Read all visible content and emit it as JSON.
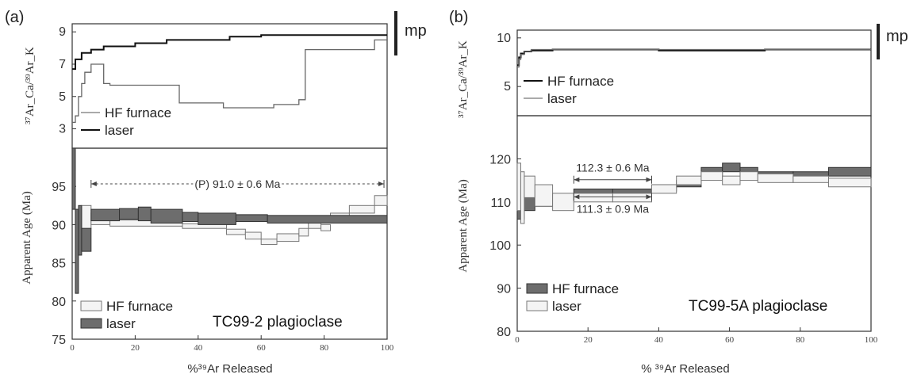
{
  "chart_data": [
    {
      "panel_label": "(a)",
      "type": "line",
      "title": "TC99-2 plagioclase",
      "xlabel": "%³⁹Ar Released",
      "xlim": [
        0,
        100
      ],
      "x_ticks": [
        "0",
        "20",
        "40",
        "60",
        "80",
        "100"
      ],
      "scale_bar_label": "mp",
      "top": {
        "ylabel": "³⁷Ar_Ca/³⁹Ar_K",
        "y_ticks": [
          "3",
          "5",
          "7",
          "9"
        ],
        "ylim": [
          1.8,
          9.5
        ],
        "legend": [
          "HF furnace",
          "laser"
        ],
        "series": [
          {
            "style": "thin",
            "x": [
              0,
              1,
              1,
              2,
              2,
              3,
              3,
              4,
              4,
              6,
              6,
              10,
              10,
              12,
              12,
              34,
              34,
              48,
              48,
              64,
              64,
              72,
              72,
              74,
              74,
              96,
              96,
              100
            ],
            "y": [
              3.4,
              3.4,
              3.8,
              3.8,
              5,
              5,
              5.8,
              5.8,
              6.5,
              6.5,
              7.0,
              7.0,
              5.8,
              5.8,
              5.7,
              5.7,
              4.6,
              4.6,
              4.3,
              4.3,
              4.5,
              4.5,
              4.8,
              4.8,
              7.9,
              7.9,
              8.5,
              8.5
            ]
          },
          {
            "style": "thick",
            "x": [
              0,
              1,
              1,
              3,
              3,
              6,
              6,
              10,
              10,
              20,
              20,
              30,
              30,
              50,
              50,
              60,
              60,
              100
            ],
            "y": [
              6.7,
              6.7,
              7.3,
              7.3,
              7.7,
              7.7,
              7.9,
              7.9,
              8.1,
              8.1,
              8.3,
              8.3,
              8.5,
              8.5,
              8.7,
              8.7,
              8.8,
              8.8
            ]
          }
        ]
      },
      "bottom": {
        "ylabel": "Apparent Age (Ma)",
        "y_ticks": [
          "75",
          "80",
          "85",
          "90",
          "95"
        ],
        "ylim": [
          75,
          100
        ],
        "legend": [
          "HF furnace",
          "laser"
        ],
        "plateau_label": "(P) 91.0 ± 0.6 Ma",
        "plateau_range": [
          6,
          99
        ],
        "boxes_open": [
          [
            0,
            1,
            97,
            101
          ],
          [
            1,
            2,
            90,
            92
          ],
          [
            3,
            6,
            89.5,
            92.5
          ],
          [
            6,
            12,
            90,
            91.5
          ],
          [
            12,
            35,
            89.8,
            90.6
          ],
          [
            35,
            49,
            89.5,
            90.1
          ],
          [
            49,
            55,
            88.7,
            89.4
          ],
          [
            55,
            60,
            88.1,
            89.0
          ],
          [
            60,
            65,
            87.4,
            88.1
          ],
          [
            65,
            72,
            87.8,
            88.8
          ],
          [
            72,
            75,
            88.5,
            89.5
          ],
          [
            75,
            79,
            89.5,
            90.4
          ],
          [
            79,
            82,
            89.2,
            90.0
          ],
          [
            82,
            88,
            90.5,
            91.5
          ],
          [
            88,
            96,
            91.5,
            92.5
          ],
          [
            96,
            100,
            92.5,
            93.8
          ]
        ],
        "boxes_filled": [
          [
            0,
            1,
            92,
            100
          ],
          [
            1,
            2,
            81,
            92
          ],
          [
            2,
            3,
            86,
            92.5
          ],
          [
            3,
            6,
            86.5,
            89.5
          ],
          [
            6,
            15,
            90.5,
            92
          ],
          [
            15,
            21,
            90.7,
            92.1
          ],
          [
            21,
            25,
            90.5,
            92.3
          ],
          [
            25,
            35,
            90.2,
            92
          ],
          [
            35,
            40,
            90.4,
            91.6
          ],
          [
            40,
            52,
            90,
            91.5
          ],
          [
            52,
            62,
            90.4,
            91.3
          ],
          [
            62,
            100,
            90.2,
            91.2
          ]
        ]
      }
    },
    {
      "panel_label": "(b)",
      "type": "line",
      "title": "TC99-5A plagioclase",
      "xlabel": "% ³⁹Ar Released",
      "xlim": [
        0,
        100
      ],
      "x_ticks": [
        "0",
        "20",
        "40",
        "60",
        "80",
        "100"
      ],
      "scale_bar_label": "mp",
      "top": {
        "ylabel": "³⁷Ar_Ca/³⁹Ar_K",
        "y_ticks": [
          "5",
          "10"
        ],
        "ylim": [
          2,
          10.8
        ],
        "legend": [
          "HF furnace",
          "laser"
        ],
        "series": [
          {
            "style": "thick",
            "x": [
              0,
              0.5,
              0.5,
              1,
              1,
              2,
              2,
              4,
              4,
              10,
              10,
              40,
              40,
              70,
              70,
              100
            ],
            "y": [
              7.2,
              7.2,
              8.0,
              8.0,
              8.4,
              8.4,
              8.6,
              8.6,
              8.7,
              8.7,
              8.8,
              8.8,
              8.7,
              8.7,
              8.8,
              8.8
            ]
          },
          {
            "style": "thin",
            "x": [
              0,
              0.5,
              0.5,
              1,
              1,
              2,
              2,
              4,
              4,
              100
            ],
            "y": [
              7.0,
              7.0,
              7.8,
              7.8,
              8.3,
              8.3,
              8.6,
              8.6,
              8.8,
              8.8
            ]
          }
        ]
      },
      "bottom": {
        "ylabel": "Apparent Age (Ma)",
        "y_ticks": [
          "80",
          "90",
          "100",
          "110",
          "120"
        ],
        "ylim": [
          80,
          130
        ],
        "legend": [
          "HF furnace",
          "laser"
        ],
        "annotations": [
          {
            "label": "112.3 ± 0.6 Ma",
            "range": [
              16,
              38
            ],
            "y": 117
          },
          {
            "label": "111.3 ± 0.9 Ma",
            "range": [
              16,
              38
            ],
            "y": 107.5
          }
        ],
        "boxes_filled": [
          [
            0,
            1,
            106,
            117
          ],
          [
            1,
            2,
            106,
            112
          ],
          [
            2,
            5,
            108,
            111
          ],
          [
            5,
            10,
            109,
            111
          ],
          [
            10,
            16,
            110,
            111.5
          ],
          [
            16,
            27,
            111.5,
            113
          ],
          [
            27,
            38,
            111.8,
            113
          ],
          [
            38,
            45,
            112.5,
            114
          ],
          [
            45,
            52,
            113.5,
            115
          ],
          [
            52,
            58,
            116,
            118
          ],
          [
            58,
            63,
            117,
            119
          ],
          [
            63,
            68,
            116,
            118
          ],
          [
            68,
            78,
            115.5,
            117
          ],
          [
            78,
            88,
            115.5,
            117
          ],
          [
            88,
            100,
            116,
            118
          ]
        ],
        "boxes_open": [
          [
            0,
            1,
            108,
            119
          ],
          [
            1,
            2,
            105,
            117
          ],
          [
            2,
            5,
            111,
            116
          ],
          [
            5,
            10,
            109,
            114
          ],
          [
            10,
            16,
            108,
            112
          ],
          [
            16,
            27,
            110,
            112
          ],
          [
            27,
            38,
            110,
            112
          ],
          [
            38,
            45,
            112,
            114
          ],
          [
            45,
            52,
            114,
            116
          ],
          [
            52,
            58,
            115,
            117
          ],
          [
            58,
            63,
            114,
            116
          ],
          [
            63,
            68,
            115,
            117
          ],
          [
            68,
            78,
            114.5,
            116.5
          ],
          [
            78,
            88,
            114.5,
            116
          ],
          [
            88,
            100,
            113.5,
            115.5
          ]
        ]
      }
    }
  ]
}
